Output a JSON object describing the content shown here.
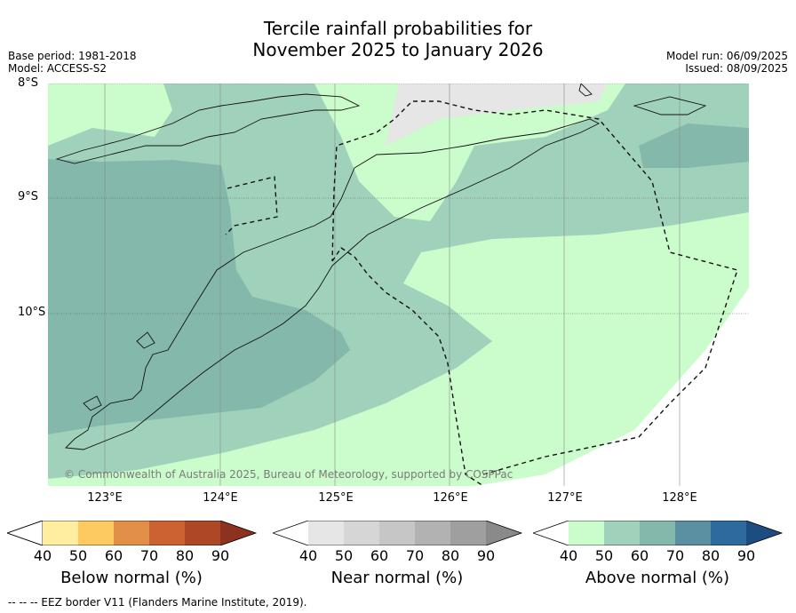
{
  "title": {
    "line1": "Tercile rainfall probabilities for",
    "line2": "November 2025 to January 2026"
  },
  "meta": {
    "base_period": "Base period: 1981-2018",
    "model": "Model: ACCESS-S2",
    "model_run": "Model run: 06/09/2025",
    "issued": "Issued: 08/09/2025"
  },
  "axes": {
    "lat_labels": [
      "8°S",
      "9°S",
      "10°S"
    ],
    "lon_labels": [
      "123°E",
      "124°E",
      "125°E",
      "126°E",
      "127°E",
      "128°E"
    ]
  },
  "credit": "© Commonwealth of Australia 2025, Bureau of Meteorology, supported by COSPPac",
  "colorbars": [
    {
      "title": "Below normal (%)",
      "ticks": [
        "40",
        "50",
        "60",
        "70",
        "80",
        "90"
      ],
      "colors": [
        "#ffeea0",
        "#fdc961",
        "#e28f47",
        "#cc6232",
        "#ad4726",
        "#8e3220"
      ]
    },
    {
      "title": "Near normal (%)",
      "ticks": [
        "40",
        "50",
        "60",
        "70",
        "80",
        "90"
      ],
      "colors": [
        "#e6e6e6",
        "#d6d6d6",
        "#c6c6c6",
        "#b2b2b2",
        "#9f9f9f",
        "#8a8a8a"
      ]
    },
    {
      "title": "Above normal (%)",
      "ticks": [
        "40",
        "50",
        "60",
        "70",
        "80",
        "90"
      ],
      "colors": [
        "#cbfccb",
        "#a0d2bb",
        "#84b8ab",
        "#5b90a2",
        "#2f6a9e",
        "#1d4c80"
      ]
    }
  ],
  "footer": "--  --  -- EEZ border V11 (Flanders Marine Institute, 2019)."
}
